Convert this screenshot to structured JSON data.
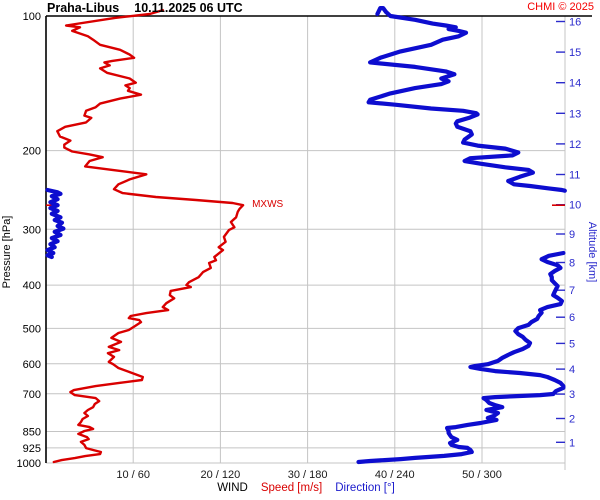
{
  "header": {
    "station": "Praha-Libus",
    "datetime": "10.11.2025 06 UTC",
    "copyright": "CHMI © 2025"
  },
  "axes": {
    "pressure": {
      "title": "Pressure [hPa]",
      "unit": "hPa",
      "scale": "log-inverted",
      "ticks": [
        100,
        200,
        300,
        400,
        500,
        600,
        700,
        850,
        925,
        1000
      ]
    },
    "altitude": {
      "title": "Altitude [km]",
      "unit": "km",
      "ticks": [
        1,
        2,
        3,
        4,
        5,
        6,
        7,
        8,
        9,
        10,
        11,
        12,
        13,
        14,
        15,
        16
      ]
    },
    "wind": {
      "caption_wind": "WIND",
      "caption_speed": "Speed [m/s]",
      "caption_direction": "Direction [°]",
      "tick_labels": [
        "10 / 60",
        "20 / 120",
        "30 / 180",
        "40 / 240",
        "50 / 300"
      ],
      "speed_ticks": [
        10,
        20,
        30,
        40,
        50
      ],
      "direction_ticks": [
        60,
        120,
        180,
        240,
        300
      ]
    }
  },
  "colors": {
    "speed": "#d90000",
    "direction": "#0d0dcf",
    "copyright": "#f50000",
    "grid": "#c4c4c4",
    "axis": "#000000",
    "altitude_axis": "#2b2bcc"
  },
  "chart_data": {
    "type": "line",
    "title": "Praha-Libus 10.11.2025 06 UTC",
    "xlabel": "WIND Speed [m/s] / Direction [°]",
    "ylabel": "Pressure [hPa] (log, inverted) with Altitude [km] on right",
    "x_range_speed_ms": [
      0,
      60
    ],
    "x_range_direction_deg": [
      0,
      360
    ],
    "y_range_hpa": [
      100,
      1000
    ],
    "grid": true,
    "max_wind": {
      "label": "MXWS",
      "pressure_hpa": 265,
      "speed_ms": 22.6
    },
    "series": [
      {
        "name": "Speed [m/s]",
        "color": "#d90000",
        "pressure_hpa": [
          97,
          99,
          101,
          105,
          106,
          108,
          111,
          113,
          116,
          119,
          122,
          124,
          126,
          127,
          129,
          131,
          134,
          138,
          141,
          143,
          145,
          147,
          150,
          153,
          157,
          160,
          163,
          167,
          169,
          173,
          177,
          181,
          186,
          190,
          194,
          197,
          201,
          204,
          207,
          211,
          217,
          221,
          226,
          232,
          238,
          244,
          249,
          254,
          258,
          262,
          265,
          270,
          274,
          282,
          289,
          297,
          301,
          312,
          320,
          329,
          334,
          346,
          352,
          357,
          366,
          374,
          384,
          394,
          400,
          404,
          412,
          421,
          428,
          439,
          448,
          455,
          462,
          469,
          474,
          479,
          484,
          494,
          504,
          512,
          525,
          536,
          550,
          559,
          568,
          579,
          594,
          601,
          613,
          626,
          642,
          652,
          662,
          673,
          687,
          694,
          705,
          716,
          727,
          738,
          750,
          761,
          773,
          785,
          797,
          810,
          822,
          831,
          839,
          848,
          861,
          875,
          884,
          897,
          911,
          926,
          935,
          945,
          955,
          965,
          975,
          985,
          995
        ],
        "speed_ms": [
          13.4,
          11.9,
          7.9,
          2.3,
          3.9,
          3.0,
          4.8,
          5.4,
          6.2,
          8.5,
          9.6,
          10.1,
          7.6,
          6.7,
          7.3,
          6.2,
          7.0,
          9.6,
          10.3,
          9.1,
          9.6,
          9.4,
          10.9,
          8.5,
          6.2,
          5.7,
          4.6,
          4.4,
          5.2,
          4.6,
          2.2,
          1.3,
          1.6,
          2.8,
          2.1,
          2.1,
          3.0,
          5.0,
          6.5,
          5.0,
          4.5,
          7.6,
          11.5,
          9.6,
          8.3,
          7.8,
          8.8,
          12.6,
          17.2,
          21.4,
          22.6,
          22.2,
          22.0,
          21.8,
          21.2,
          21.6,
          21.0,
          20.4,
          20.6,
          19.8,
          20.3,
          19.3,
          19.5,
          18.7,
          18.9,
          18.0,
          17.5,
          16.4,
          16.1,
          16.6,
          14.3,
          14.2,
          14.7,
          13.8,
          13.4,
          14.0,
          11.5,
          9.7,
          9.5,
          10.7,
          10.9,
          10.2,
          9.5,
          8.3,
          7.5,
          8.6,
          7.2,
          8.4,
          7.1,
          7.8,
          7.2,
          7.7,
          8.3,
          9.6,
          11.1,
          11.0,
          8.4,
          5.7,
          3.2,
          2.8,
          3.3,
          5.7,
          6.1,
          5.6,
          5.4,
          4.8,
          4.4,
          4.8,
          4.2,
          4.0,
          3.7,
          5.0,
          5.4,
          4.4,
          3.7,
          4.7,
          4.9,
          4.0,
          4.4,
          4.6,
          5.4,
          6.3,
          6.2,
          4.5,
          3.3,
          1.8,
          0.9
        ]
      },
      {
        "name": "Direction [°]",
        "color": "#0d0dcf",
        "segments": [
          {
            "pressure_hpa": [
              99,
              96,
              96,
              98,
              100,
              102,
              104,
              105,
              106,
              107,
              108,
              109,
              111,
              113,
              116,
              120,
              124,
              127,
              130,
              133,
              135,
              138,
              140,
              142,
              145,
              149,
              154,
              156,
              158,
              161,
              163,
              165,
              166,
              169,
              172,
              174,
              177,
              181,
              184,
              186,
              189,
              192,
              195,
              198,
              202,
              205,
              208,
              211,
              214,
              218,
              221,
              224,
              229,
              234,
              238,
              240,
              243,
              245,
              246
            ],
            "direction_deg": [
              228,
              230,
              232,
              234,
              237,
              254,
              266,
              275,
              282,
              277,
              284,
              289,
              284,
              273,
              265,
              244,
              230,
              223,
              254,
              275,
              281,
              272,
              277,
              272,
              254,
              237,
              223,
              222,
              241,
              265,
              287,
              296,
              297,
              291,
              283,
              282,
              283,
              292,
              293,
              291,
              288,
              287,
              297,
              316,
              325,
              321,
              292,
              288,
              299,
              316,
              332,
              335,
              326,
              318,
              322,
              333,
              346,
              355,
              357
            ]
          },
          {
            "pressure_hpa": [
              245,
              248,
              250,
              253,
              257,
              261,
              265,
              269,
              273,
              277,
              282,
              286,
              290,
              295,
              299,
              304,
              309,
              314,
              319,
              324,
              329,
              334,
              339,
              343,
              346
            ],
            "direction_deg": [
              1,
              8,
              10,
              4,
              8,
              3,
              8,
              3,
              8,
              4,
              10,
              6,
              11,
              8,
              12,
              6,
              10,
              4,
              8,
              3,
              6,
              1,
              5,
              1,
              4
            ]
          },
          {
            "pressure_hpa": [
              339,
              344,
              350,
              355,
              361,
              366,
              372,
              378,
              384,
              390,
              396,
              402,
              408,
              414,
              421,
              427,
              434,
              441,
              448,
              455,
              461,
              469,
              476,
              484,
              491,
              499,
              507,
              515,
              522,
              530,
              539,
              547,
              556,
              565,
              573,
              582,
              591,
              601,
              607,
              610,
              616,
              623,
              629,
              636,
              642,
              652,
              662,
              673,
              679,
              690,
              701,
              705,
              708,
              712,
              716,
              723,
              734,
              742,
              750,
              761,
              773,
              785,
              793,
              801,
              814,
              822,
              831,
              835,
              848,
              857,
              866,
              875,
              888,
              902,
              911,
              921,
              925,
              935,
              945,
              955,
              964,
              969,
              974,
              980,
              985,
              990,
              995
            ],
            "direction_deg": [
              356,
              346,
              341,
              345,
              352,
              354,
              350,
              347,
              348,
              348,
              350,
              352,
              351,
              350,
              349,
              352,
              355,
              354,
              345,
              340,
              341,
              339,
              338,
              334,
              332,
              325,
              323,
              325,
              328,
              330,
              333,
              332,
              328,
              322,
              318,
              314,
              311,
              304,
              295,
              292,
              299,
              309,
              326,
              340,
              345,
              350,
              354,
              356,
              356,
              351,
              349,
              340,
              326,
              309,
              301,
              303,
              305,
              309,
              314,
              303,
              311,
              308,
              304,
              310,
              299,
              290,
              282,
              276,
              277,
              277,
              278,
              279,
              283,
              278,
              279,
              284,
              290,
              292,
              293,
              286,
              274,
              264,
              254,
              244,
              233,
              223,
              215
            ]
          }
        ]
      }
    ]
  }
}
